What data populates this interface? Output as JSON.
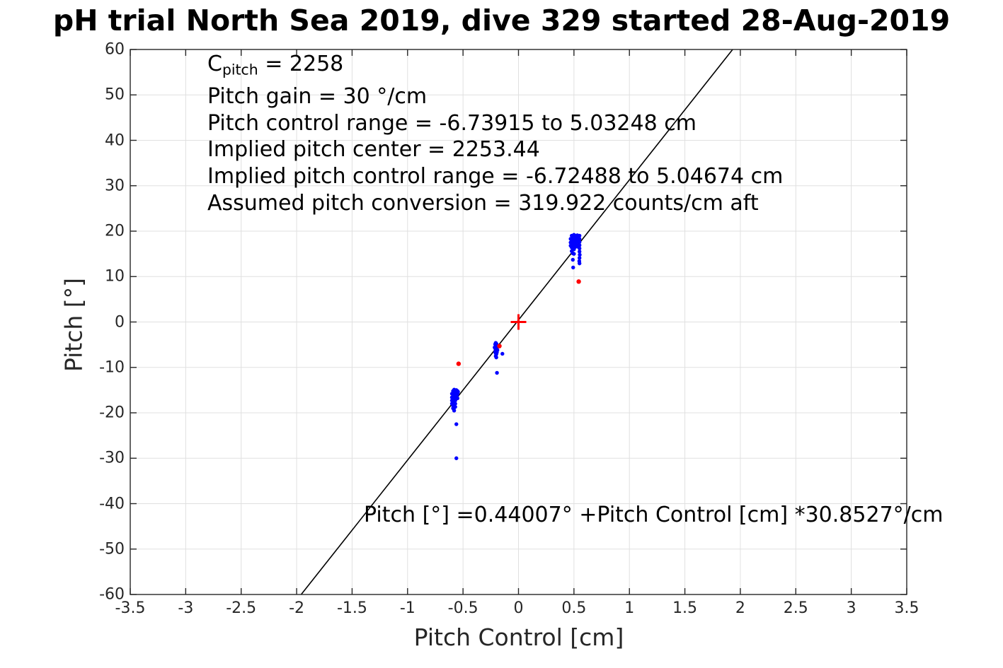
{
  "annotation": {
    "c_line": {
      "base": "C",
      "sub": "pitch",
      "rest": " = 2258"
    },
    "lines": [
      "Pitch gain = 30 °/cm",
      "Pitch control range = -6.73915 to 5.03248 cm",
      "Implied pitch center = 2253.44",
      "Implied pitch control range = -6.72488 to 5.04674 cm",
      "Assumed pitch conversion = 319.922 counts/cm aft"
    ]
  },
  "chart_data": {
    "type": "scatter",
    "title": "pH trial North Sea 2019, dive 329 started 28-Aug-2019",
    "xlabel": "Pitch Control [cm]",
    "ylabel": "Pitch [°]",
    "xlim": [
      -3.5,
      3.5
    ],
    "ylim": [
      -60,
      60
    ],
    "xticks": [
      -3.5,
      -3,
      -2.5,
      -2,
      -1.5,
      -1,
      -0.5,
      0,
      0.5,
      1,
      1.5,
      2,
      2.5,
      3,
      3.5
    ],
    "xtick_labels": [
      "-3.5",
      "-3",
      "-2.5",
      "-2",
      "-1.5",
      "-1",
      "-0.5",
      "0",
      "0.5",
      "1",
      "1.5",
      "2",
      "2.5",
      "3",
      "3.5"
    ],
    "yticks": [
      -60,
      -50,
      -40,
      -30,
      -20,
      -10,
      0,
      10,
      20,
      30,
      40,
      50,
      60
    ],
    "ytick_labels": [
      "-60",
      "-50",
      "-40",
      "-30",
      "-20",
      "-10",
      "0",
      "10",
      "20",
      "30",
      "40",
      "50",
      "60"
    ],
    "grid": true,
    "legend": "none",
    "colors": {
      "samples": "#0000ff",
      "outliers": "#ff0000",
      "fit_line": "#000000",
      "grid": "#e0e0e0",
      "axis": "#262626",
      "background": "#ffffff"
    },
    "fit_line": {
      "intercept_deg": 0.44007,
      "slope_deg_per_cm": 30.8527,
      "label": "Pitch [°] =0.44007° +Pitch Control [cm] *30.8527°/cm"
    },
    "series": [
      {
        "name": "pitch-samples",
        "marker": "dot",
        "color": "#0000ff",
        "points": [
          [
            -0.6,
            -15.8
          ],
          [
            -0.6,
            -16.6
          ],
          [
            -0.6,
            -17.3
          ],
          [
            -0.6,
            -18.0
          ],
          [
            -0.59,
            -15.2
          ],
          [
            -0.59,
            -15.9
          ],
          [
            -0.59,
            -16.5
          ],
          [
            -0.59,
            -17.1
          ],
          [
            -0.59,
            -17.8
          ],
          [
            -0.59,
            -18.4
          ],
          [
            -0.59,
            -19.0
          ],
          [
            -0.58,
            -14.9
          ],
          [
            -0.58,
            -15.6
          ],
          [
            -0.58,
            -16.3
          ],
          [
            -0.58,
            -17.0
          ],
          [
            -0.58,
            -17.7
          ],
          [
            -0.58,
            -18.3
          ],
          [
            -0.58,
            -18.9
          ],
          [
            -0.58,
            -19.5
          ],
          [
            -0.57,
            -15.1
          ],
          [
            -0.57,
            -15.8
          ],
          [
            -0.57,
            -16.6
          ],
          [
            -0.57,
            -17.3
          ],
          [
            -0.57,
            -18.0
          ],
          [
            -0.57,
            -18.7
          ],
          [
            -0.56,
            -15.0
          ],
          [
            -0.56,
            -15.7
          ],
          [
            -0.56,
            -16.4
          ],
          [
            -0.55,
            -15.2
          ],
          [
            -0.55,
            -15.9
          ],
          [
            -0.55,
            -16.8
          ],
          [
            -0.545,
            -15.4
          ],
          [
            -0.56,
            -22.5
          ],
          [
            -0.56,
            -30.0
          ],
          [
            -0.215,
            -5.6
          ],
          [
            -0.21,
            -4.9
          ],
          [
            -0.21,
            -5.8
          ],
          [
            -0.21,
            -6.6
          ],
          [
            -0.205,
            -4.6
          ],
          [
            -0.205,
            -5.3
          ],
          [
            -0.205,
            -6.1
          ],
          [
            -0.205,
            -6.9
          ],
          [
            -0.205,
            -7.5
          ],
          [
            -0.2,
            -4.8
          ],
          [
            -0.2,
            -5.5
          ],
          [
            -0.2,
            -6.3
          ],
          [
            -0.2,
            -7.1
          ],
          [
            -0.2,
            -7.8
          ],
          [
            -0.195,
            -5.0
          ],
          [
            -0.195,
            -5.9
          ],
          [
            -0.195,
            -6.7
          ],
          [
            -0.19,
            -5.4
          ],
          [
            -0.19,
            -6.2
          ],
          [
            -0.145,
            -7.0
          ],
          [
            -0.194,
            -11.2
          ],
          [
            0.47,
            18.3
          ],
          [
            0.47,
            17.5
          ],
          [
            0.47,
            16.8
          ],
          [
            0.48,
            19.0
          ],
          [
            0.48,
            18.2
          ],
          [
            0.48,
            17.3
          ],
          [
            0.48,
            16.4
          ],
          [
            0.48,
            15.6
          ],
          [
            0.49,
            18.8
          ],
          [
            0.49,
            18.0
          ],
          [
            0.49,
            17.1
          ],
          [
            0.49,
            16.2
          ],
          [
            0.49,
            15.1
          ],
          [
            0.49,
            13.7
          ],
          [
            0.493,
            12.0
          ],
          [
            0.5,
            19.2
          ],
          [
            0.5,
            18.5
          ],
          [
            0.5,
            17.7
          ],
          [
            0.5,
            16.9
          ],
          [
            0.5,
            16.0
          ],
          [
            0.5,
            15.0
          ],
          [
            0.51,
            19.0
          ],
          [
            0.51,
            18.3
          ],
          [
            0.51,
            17.4
          ],
          [
            0.51,
            16.5
          ],
          [
            0.52,
            18.9
          ],
          [
            0.52,
            18.0
          ],
          [
            0.52,
            17.2
          ],
          [
            0.53,
            19.1
          ],
          [
            0.53,
            18.4
          ],
          [
            0.53,
            17.6
          ],
          [
            0.53,
            16.6
          ],
          [
            0.54,
            18.8
          ],
          [
            0.54,
            18.1
          ],
          [
            0.55,
            19.0
          ],
          [
            0.55,
            18.3
          ],
          [
            0.55,
            17.6
          ],
          [
            0.55,
            16.9
          ],
          [
            0.55,
            16.2
          ],
          [
            0.55,
            15.5
          ],
          [
            0.552,
            14.8
          ],
          [
            0.55,
            14.1
          ],
          [
            0.548,
            13.4
          ],
          [
            0.55,
            12.9
          ]
        ]
      },
      {
        "name": "flagged-samples",
        "marker": "dot",
        "color": "#ff0000",
        "points": [
          [
            -0.54,
            -9.2
          ],
          [
            -0.172,
            -5.3
          ],
          [
            0.543,
            8.9
          ]
        ]
      },
      {
        "name": "pitch-center-marker",
        "marker": "plus",
        "color": "#ff0000",
        "points": [
          [
            0,
            0
          ]
        ]
      }
    ]
  }
}
